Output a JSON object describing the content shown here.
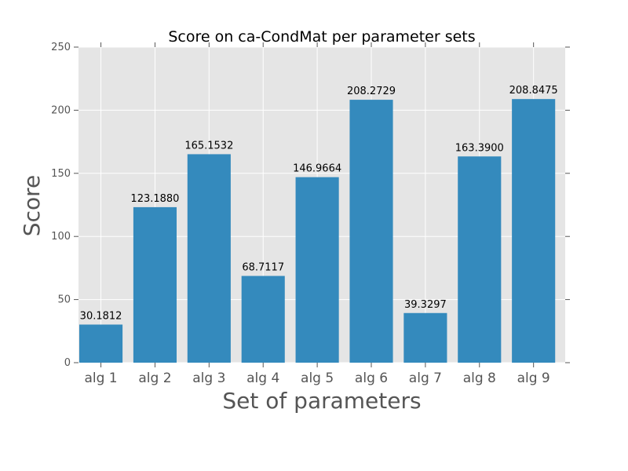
{
  "chart_data": {
    "type": "bar",
    "title": "Score on ca-CondMat per parameter sets",
    "xlabel": "Set of parameters",
    "ylabel": "Score",
    "categories": [
      "alg 1",
      "alg 2",
      "alg 3",
      "alg 4",
      "alg 5",
      "alg 6",
      "alg 7",
      "alg 8",
      "alg 9"
    ],
    "values": [
      30.1812,
      123.188,
      165.1532,
      68.7117,
      146.9664,
      208.2729,
      39.3297,
      163.39,
      208.8475
    ],
    "value_labels": [
      "30.1812",
      "123.1880",
      "165.1532",
      "68.7117",
      "146.9664",
      "208.2729",
      "39.3297",
      "163.3900",
      "208.8475"
    ],
    "ylim": [
      0,
      250
    ],
    "yticks": [
      0,
      50,
      100,
      150,
      200,
      250
    ],
    "grid": true,
    "colors": {
      "bar": "#348ABD",
      "plot_background": "#E5E5E5",
      "grid": "#FFFFFF",
      "text": "#555555"
    }
  }
}
